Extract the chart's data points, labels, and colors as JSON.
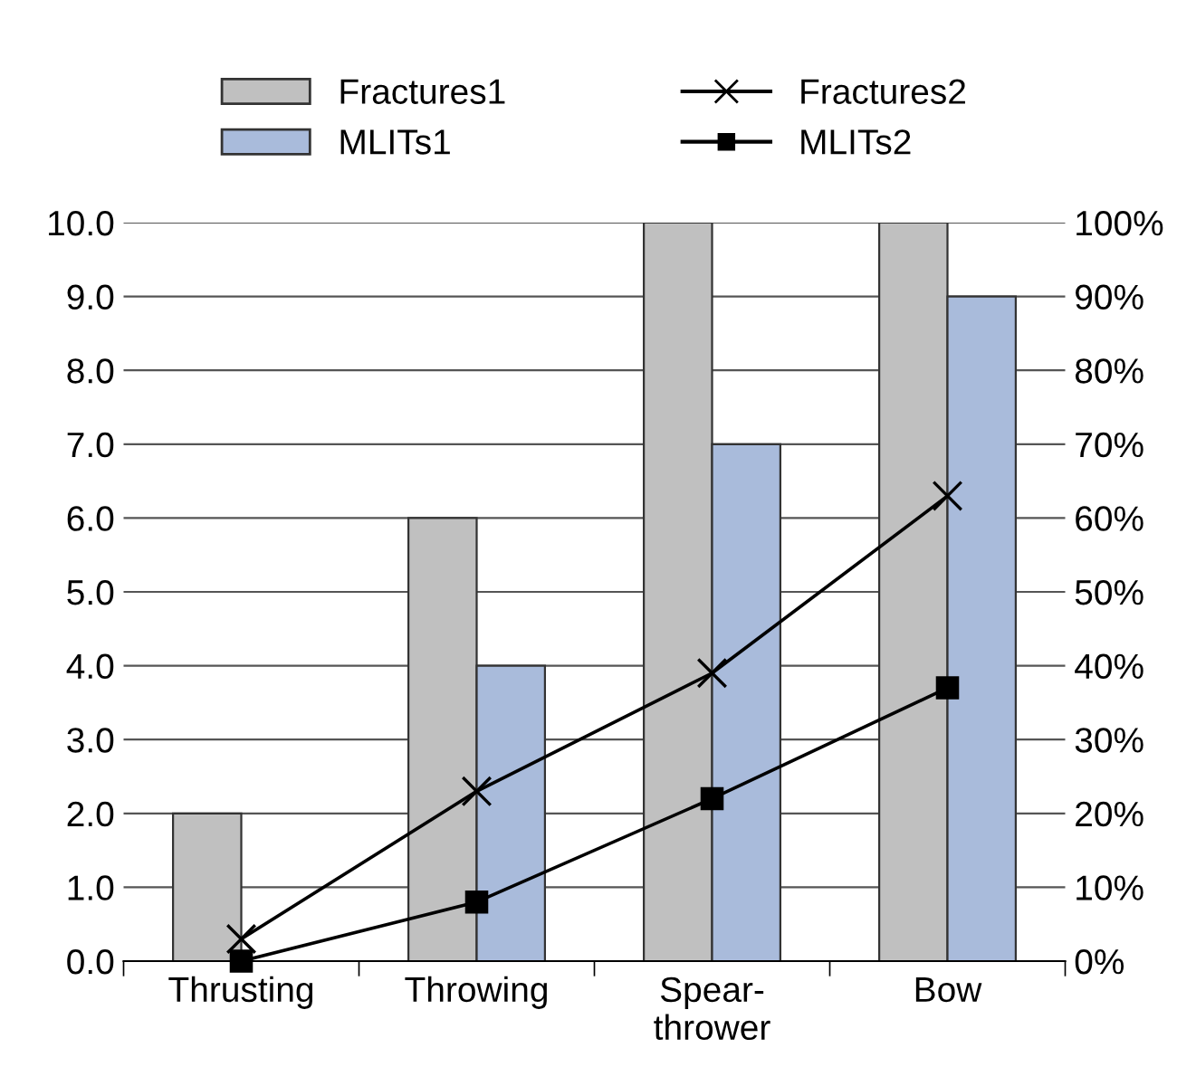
{
  "chart_data": {
    "type": "bar",
    "categories": [
      "Thrusting",
      "Throwing",
      "Spear-\nthrower",
      "Bow"
    ],
    "series": [
      {
        "name": "Fractures1",
        "color": "#c0c0c0",
        "values": [
          2,
          6,
          10,
          10
        ]
      },
      {
        "name": "MLITs1",
        "color": "#a9bbdb",
        "values": [
          0,
          4,
          7,
          9
        ]
      },
      {
        "name": "Fractures2",
        "type": "line",
        "axis": "y2",
        "color": "#000000",
        "marker": "cross",
        "values": [
          3,
          23,
          39,
          63
        ]
      },
      {
        "name": "MLITs2",
        "type": "line",
        "axis": "y2",
        "color": "#000000",
        "marker": "square",
        "values": [
          0,
          8,
          22,
          37
        ]
      }
    ],
    "ylim": [
      0,
      10
    ],
    "yticks": [
      {
        "value": 0,
        "label": "0.0"
      },
      {
        "value": 1,
        "label": "1.0"
      },
      {
        "value": 2,
        "label": "2.0"
      },
      {
        "value": 3,
        "label": "3.0"
      },
      {
        "value": 4,
        "label": "4.0"
      },
      {
        "value": 5,
        "label": "5.0"
      },
      {
        "value": 6,
        "label": "6.0"
      },
      {
        "value": 7,
        "label": "7.0"
      },
      {
        "value": 8,
        "label": "8.0"
      },
      {
        "value": 9,
        "label": "9.0"
      },
      {
        "value": 10,
        "label": "10.0"
      }
    ],
    "y2lim": [
      0,
      100
    ],
    "y2ticks": [
      {
        "value": 0,
        "label": "0%"
      },
      {
        "value": 10,
        "label": "10%"
      },
      {
        "value": 20,
        "label": "20%"
      },
      {
        "value": 30,
        "label": "30%"
      },
      {
        "value": 40,
        "label": "40%"
      },
      {
        "value": 50,
        "label": "50%"
      },
      {
        "value": 60,
        "label": "60%"
      },
      {
        "value": 70,
        "label": "70%"
      },
      {
        "value": 80,
        "label": "80%"
      },
      {
        "value": 90,
        "label": "90%"
      },
      {
        "value": 100,
        "label": "100%"
      }
    ],
    "grid": "y",
    "legend": "top",
    "line_style": "solid"
  }
}
